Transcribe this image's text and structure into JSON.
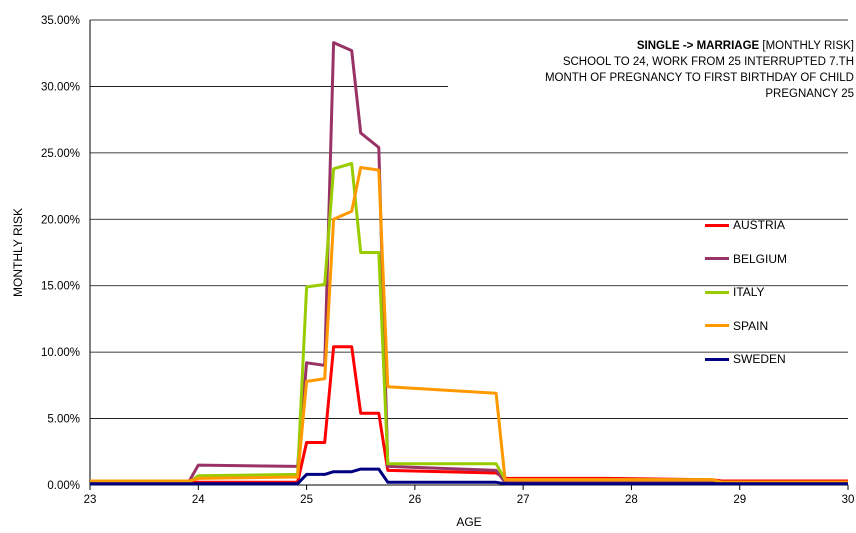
{
  "chart_data": {
    "type": "line",
    "xlabel": "AGE",
    "ylabel": "MONTHLY RISK",
    "xlim": [
      23,
      30
    ],
    "ylim": [
      0,
      0.35
    ],
    "x_ticks": [
      "23",
      "24",
      "25",
      "26",
      "27",
      "28",
      "29",
      "30"
    ],
    "y_ticks": [
      "0.00%",
      "5.00%",
      "10.00%",
      "15.00%",
      "20.00%",
      "25.00%",
      "30.00%",
      "35.00%"
    ],
    "grid": "horizontal",
    "legend_position": "right",
    "annotation": {
      "bold": "SINGLE -> MARRIAGE",
      "bold_suffix": " [MONTHLY RISK]",
      "lines": [
        "SCHOOL TO 24, WORK FROM 25 INTERRUPTED 7.TH",
        "MONTH OF PREGNANCY TO FIRST BIRTHDAY OF CHILD",
        "PREGNANCY 25"
      ]
    },
    "series": [
      {
        "name": "AUSTRIA",
        "color": "#ff0000",
        "points": [
          [
            23,
            0.002
          ],
          [
            24,
            0.002
          ],
          [
            24.917,
            0.002
          ],
          [
            25,
            0.032
          ],
          [
            25.167,
            0.032
          ],
          [
            25.25,
            0.104
          ],
          [
            25.417,
            0.104
          ],
          [
            25.5,
            0.054
          ],
          [
            25.667,
            0.054
          ],
          [
            25.75,
            0.011
          ],
          [
            26.75,
            0.009
          ],
          [
            26.833,
            0.005
          ],
          [
            27.75,
            0.005
          ],
          [
            28.75,
            0.004
          ],
          [
            28.833,
            0.003
          ],
          [
            30,
            0.003
          ]
        ]
      },
      {
        "name": "BELGIUM",
        "color": "#993366",
        "points": [
          [
            23,
            0.003
          ],
          [
            23.917,
            0.003
          ],
          [
            24,
            0.015
          ],
          [
            24.917,
            0.014
          ],
          [
            25,
            0.092
          ],
          [
            25.167,
            0.09
          ],
          [
            25.25,
            0.333
          ],
          [
            25.417,
            0.327
          ],
          [
            25.5,
            0.265
          ],
          [
            25.667,
            0.254
          ],
          [
            25.75,
            0.014
          ],
          [
            26.75,
            0.011
          ],
          [
            26.833,
            0.002
          ],
          [
            30,
            0.002
          ]
        ]
      },
      {
        "name": "ITALY",
        "color": "#99cc00",
        "points": [
          [
            23,
            0.002
          ],
          [
            23.917,
            0.002
          ],
          [
            24,
            0.007
          ],
          [
            24.917,
            0.008
          ],
          [
            25,
            0.149
          ],
          [
            25.167,
            0.151
          ],
          [
            25.25,
            0.238
          ],
          [
            25.417,
            0.242
          ],
          [
            25.5,
            0.175
          ],
          [
            25.667,
            0.175
          ],
          [
            25.75,
            0.016
          ],
          [
            26.75,
            0.016
          ],
          [
            26.833,
            0.004
          ],
          [
            27.75,
            0.004
          ],
          [
            28.75,
            0.004
          ],
          [
            28.833,
            0.002
          ],
          [
            30,
            0.002
          ]
        ]
      },
      {
        "name": "SPAIN",
        "color": "#ff9900",
        "points": [
          [
            23,
            0.003
          ],
          [
            23.917,
            0.003
          ],
          [
            24,
            0.005
          ],
          [
            24.917,
            0.006
          ],
          [
            25,
            0.078
          ],
          [
            25.167,
            0.08
          ],
          [
            25.25,
            0.2
          ],
          [
            25.417,
            0.206
          ],
          [
            25.5,
            0.239
          ],
          [
            25.667,
            0.237
          ],
          [
            25.75,
            0.074
          ],
          [
            26.75,
            0.069
          ],
          [
            26.833,
            0.004
          ],
          [
            27.75,
            0.004
          ],
          [
            28.75,
            0.004
          ],
          [
            28.833,
            0.002
          ],
          [
            30,
            0.002
          ]
        ]
      },
      {
        "name": "SWEDEN",
        "color": "#000080",
        "points": [
          [
            23,
            0.001
          ],
          [
            24.917,
            0.001
          ],
          [
            25,
            0.008
          ],
          [
            25.167,
            0.008
          ],
          [
            25.25,
            0.01
          ],
          [
            25.417,
            0.01
          ],
          [
            25.5,
            0.012
          ],
          [
            25.667,
            0.012
          ],
          [
            25.75,
            0.002
          ],
          [
            26.75,
            0.002
          ],
          [
            26.833,
            0.001
          ],
          [
            30,
            0.001
          ]
        ]
      }
    ]
  }
}
